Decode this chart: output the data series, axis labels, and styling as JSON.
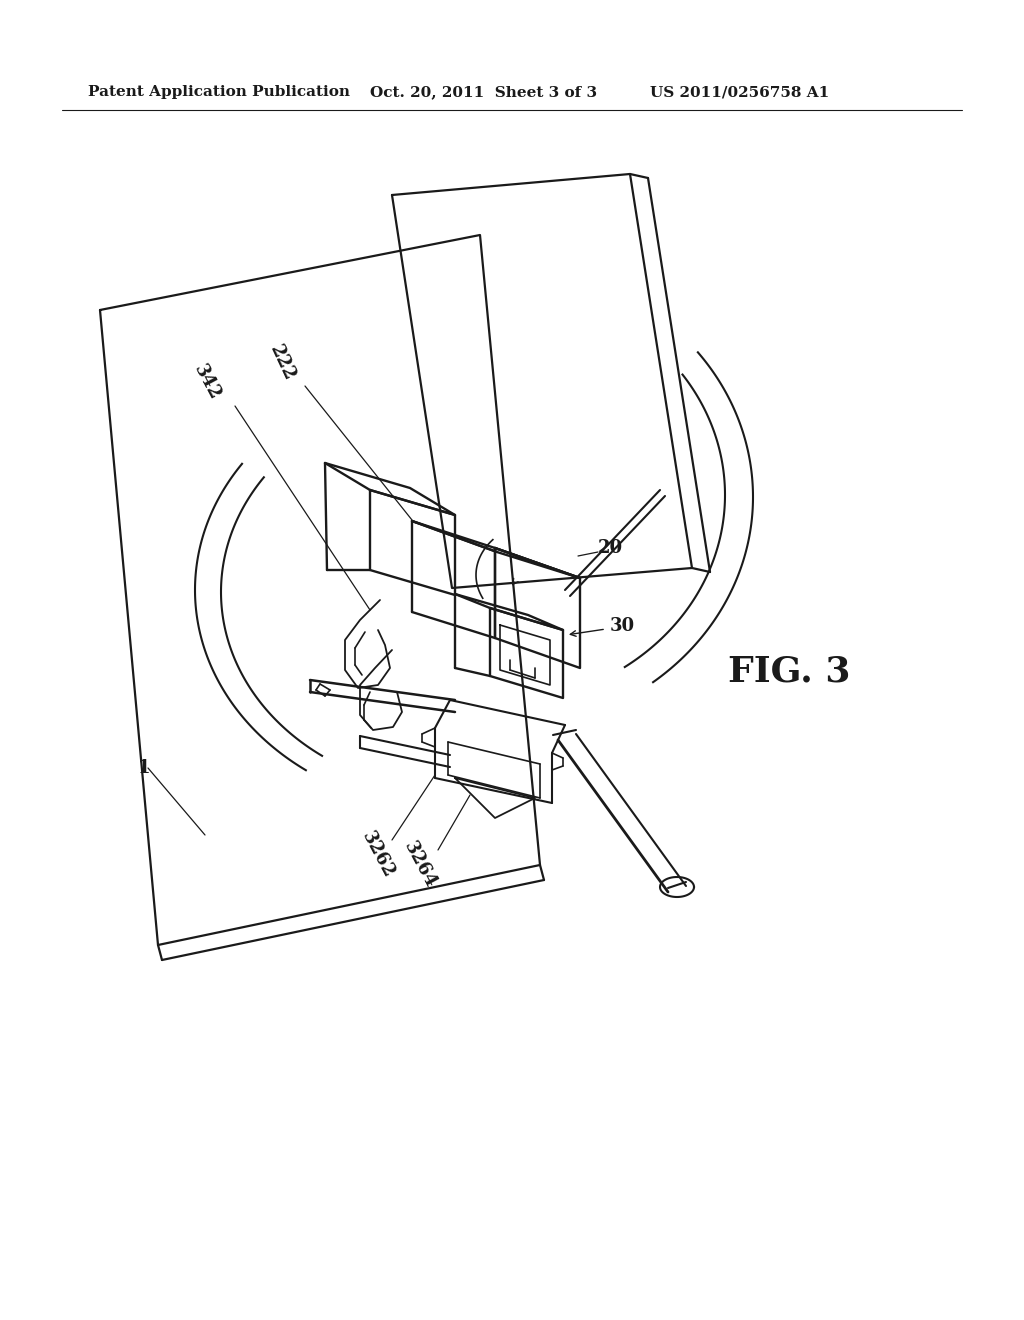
{
  "bg_color": "#ffffff",
  "line_color": "#1a1a1a",
  "header_left": "Patent Application Publication",
  "header_mid": "Oct. 20, 2011  Sheet 3 of 3",
  "header_right": "US 2011/0256758 A1",
  "fig_label": "FIG. 3"
}
